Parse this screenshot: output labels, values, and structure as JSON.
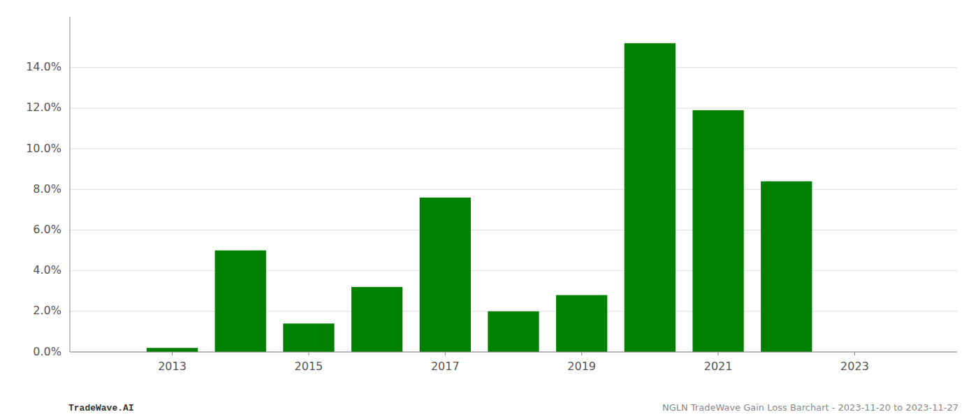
{
  "chart_data": {
    "type": "bar",
    "x": [
      2013,
      2014,
      2015,
      2016,
      2017,
      2018,
      2019,
      2020,
      2021,
      2022,
      2023
    ],
    "values": [
      0.002,
      0.05,
      0.014,
      0.032,
      0.076,
      0.02,
      0.028,
      0.152,
      0.119,
      0.084,
      0.0
    ],
    "color": "#008000",
    "xlim": [
      2011.5,
      2024.5
    ],
    "xticks": [
      2013,
      2015,
      2017,
      2019,
      2021,
      2023
    ],
    "ylim": [
      0,
      0.165
    ],
    "yticks": [
      {
        "value": 0.0,
        "label": "0.0%"
      },
      {
        "value": 0.02,
        "label": "2.0%"
      },
      {
        "value": 0.04,
        "label": "4.0%"
      },
      {
        "value": 0.06,
        "label": "6.0%"
      },
      {
        "value": 0.08,
        "label": "8.0%"
      },
      {
        "value": 0.1,
        "label": "10.0%"
      },
      {
        "value": 0.12,
        "label": "12.0%"
      },
      {
        "value": 0.14,
        "label": "14.0%"
      }
    ],
    "grid": true,
    "annotations": [
      "TradeWave.AI",
      "NGLN TradeWave Gain Loss Barchart - 2023-11-20 to 2023-11-27"
    ]
  }
}
